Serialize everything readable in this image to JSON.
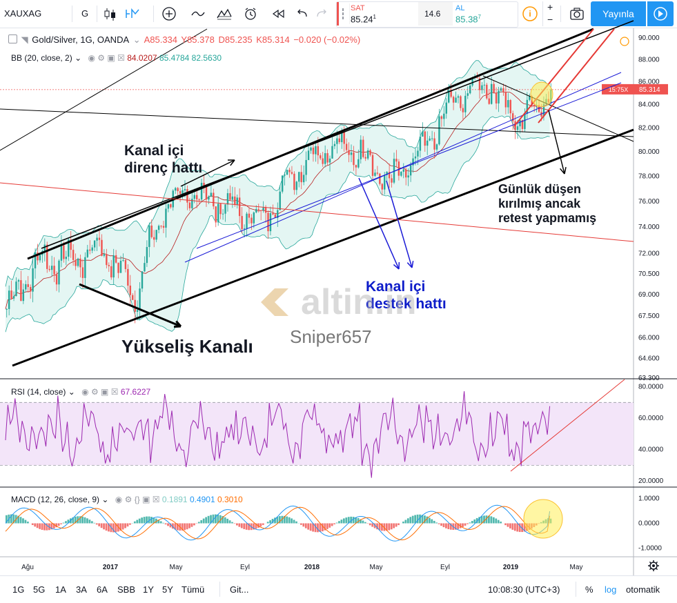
{
  "toolbar": {
    "symbol": "XAUXAG",
    "interval": "G",
    "sell_label": "SAT",
    "sell_price": "85.24",
    "sell_sup": "1",
    "spread": "14.6",
    "buy_label": "AL",
    "buy_price": "85.38",
    "buy_sup": "7",
    "publish_label": "Yayınla",
    "plus": "+",
    "minus": "−"
  },
  "legend": {
    "title": "Gold/Silver, 1G, OANDA",
    "open": "A85.334",
    "high": "Y85.378",
    "low": "D85.235",
    "close": "K85.314",
    "change": "−0.020 (−0.02%)"
  },
  "bb": {
    "label": "BB (20, close, 2)",
    "v1": "84.0207",
    "v2": "85.4784",
    "v3": "82.5630"
  },
  "rsi": {
    "label": "RSI (14, close)",
    "value": "67.6227"
  },
  "macd": {
    "label": "MACD (12, 26, close, 9)",
    "v1": "0.1891",
    "v2": "0.4901",
    "v3": "0.3010"
  },
  "annotations": {
    "resistance": [
      "Kanal içi",
      "direnç hattı"
    ],
    "support": [
      "Kanal içi",
      "destek hattı"
    ],
    "channel": "Yükseliş Kanalı",
    "daily": [
      "Günlük düşen",
      "kırılmış ancak",
      "retest yapmamış"
    ],
    "author": "Sniper657",
    "watermark": "altin.in"
  },
  "bottombar": {
    "ranges": [
      "1G",
      "5G",
      "1A",
      "3A",
      "6A",
      "SBB",
      "1Y",
      "5Y",
      "Tümü"
    ],
    "goto": "Git...",
    "time": "10:08:30 (UTC+3)",
    "percent": "%",
    "log": "log",
    "auto": "otomatik"
  },
  "colors": {
    "up": "#26a69a",
    "down": "#ef5350",
    "bb_fill": "#d9f2ee",
    "rsi_band": "#f3e5f9",
    "rsi_line": "#9c27b0",
    "macd_line": "#2196f3",
    "signal_line": "#ff6d00",
    "price_badge": "#ef5350",
    "accent": "#2196f3"
  },
  "chart_data": [
    {
      "type": "candlestick",
      "title": "Gold/Silver, 1G, OANDA",
      "x_ticks": [
        "Ağu",
        "2017",
        "May",
        "Eyl",
        "2018",
        "May",
        "Eyl",
        "2019",
        "May"
      ],
      "y_ticks": [
        63.3,
        64.6,
        66.0,
        67.5,
        69.0,
        70.5,
        72.0,
        74.0,
        76.0,
        78.0,
        80.0,
        82.0,
        84.0,
        86.0,
        88.0,
        90.0
      ],
      "ylim": [
        63.3,
        90.0
      ],
      "scale": "log",
      "last_price": "85.314",
      "countdown": "15:75X",
      "ohlc_last": {
        "open": 85.334,
        "high": 85.378,
        "low": 85.235,
        "close": 85.314
      },
      "approx_closes": [
        {
          "x": "Ağu",
          "y": 68.0
        },
        {
          "x": "Eki",
          "y": 71.5
        },
        {
          "x": "Ara",
          "y": 71.5
        },
        {
          "x": "2017",
          "y": 72.5
        },
        {
          "x": "Mar",
          "y": 69.0
        },
        {
          "x": "May",
          "y": 76.0
        },
        {
          "x": "Haz",
          "y": 76.5
        },
        {
          "x": "Tem",
          "y": 75.5
        },
        {
          "x": "Eyl",
          "y": 74.5
        },
        {
          "x": "Kas",
          "y": 78.5
        },
        {
          "x": "2018",
          "y": 80.5
        },
        {
          "x": "Mar",
          "y": 80.0
        },
        {
          "x": "May",
          "y": 77.5
        },
        {
          "x": "Tem",
          "y": 80.0
        },
        {
          "x": "Eyl",
          "y": 84.5
        },
        {
          "x": "Kas",
          "y": 86.0
        },
        {
          "x": "2019",
          "y": 82.5
        },
        {
          "x": "Şub",
          "y": 85.3
        }
      ]
    },
    {
      "type": "line",
      "title": "RSI (14, close)",
      "y_ticks": [
        20.0,
        40.0,
        60.0,
        80.0
      ],
      "ylim": [
        17,
        82
      ],
      "band": [
        30,
        70
      ],
      "last": 67.6227
    },
    {
      "type": "line",
      "title": "MACD (12, 26, close, 9)",
      "y_ticks": [
        -1.0,
        0.0,
        1.0
      ],
      "ylim": [
        -1.3,
        1.3
      ],
      "series": [
        {
          "name": "histogram",
          "last": 0.1891
        },
        {
          "name": "macd",
          "last": 0.4901
        },
        {
          "name": "signal",
          "last": 0.301
        }
      ]
    }
  ]
}
